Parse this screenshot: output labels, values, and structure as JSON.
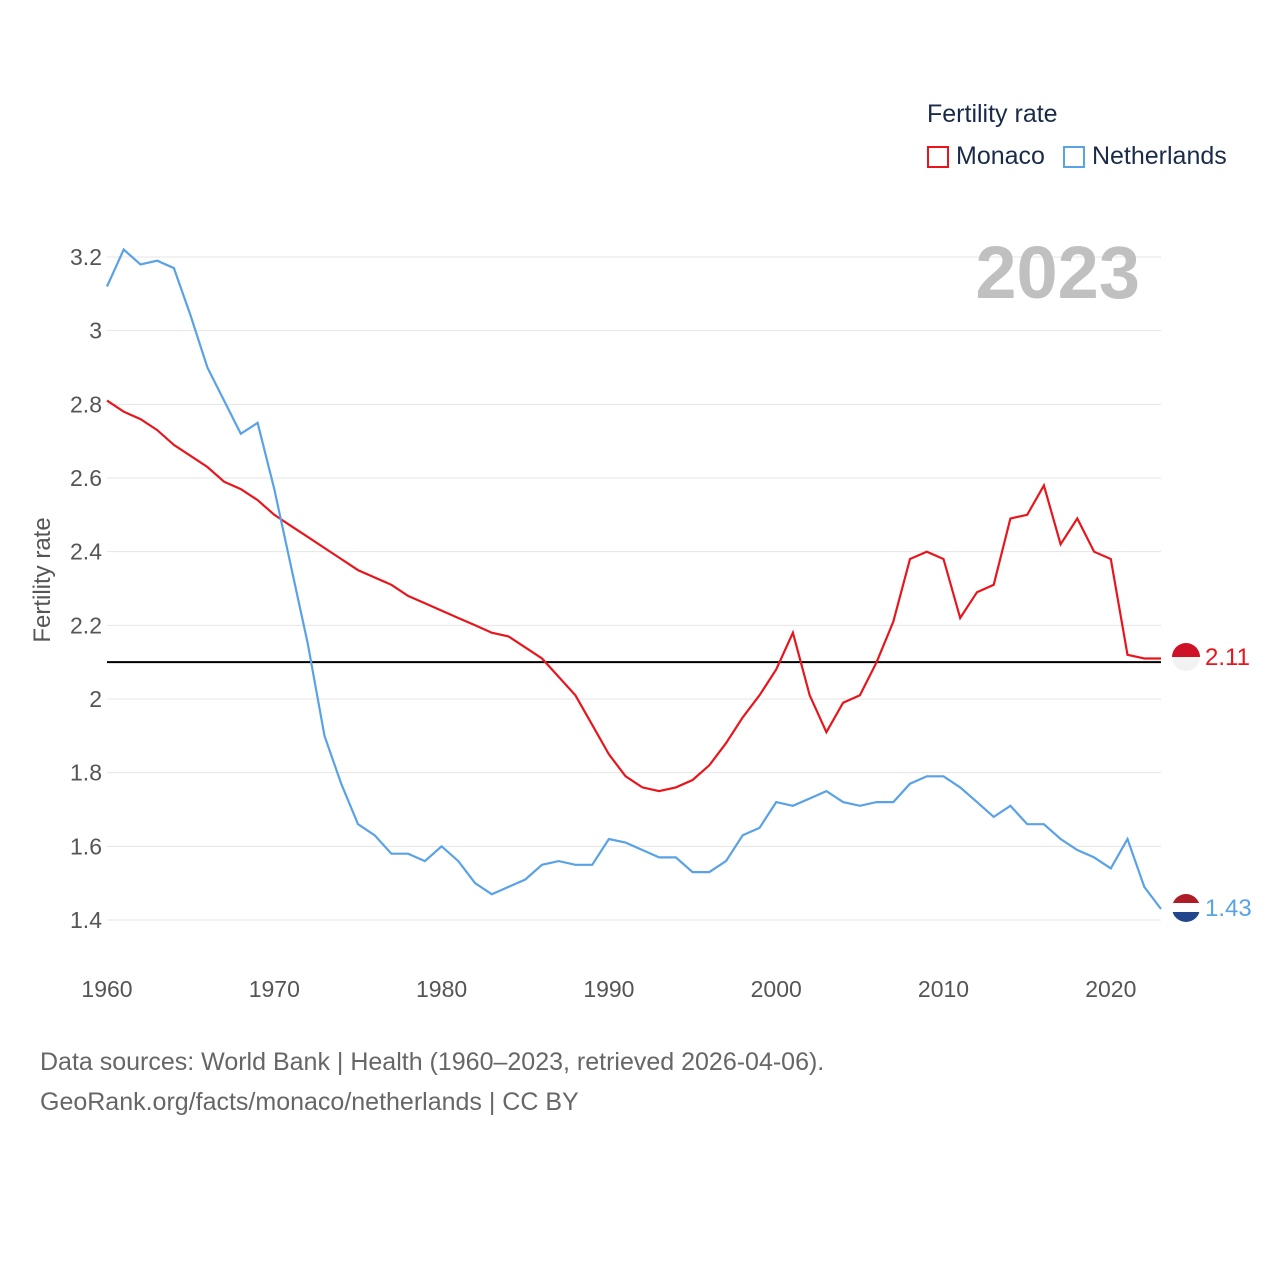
{
  "legend": {
    "title": "Fertility rate",
    "items": [
      {
        "label": "Monaco",
        "color": "#e8161c"
      },
      {
        "label": "Netherlands",
        "color": "#5aa2e6"
      }
    ]
  },
  "year_label": "2023",
  "footer": {
    "line1": "Data sources: World Bank | Health (1960–2023, retrieved 2026-04-06).",
    "line2": "GeoRank.org/facts/monaco/netherlands | CC BY"
  },
  "colors": {
    "monaco": "#e8161c",
    "netherlands": "#5aa2e6",
    "grid": "#e4e4e4",
    "reference": "#000000",
    "year": "#c0c0c0"
  },
  "chart_data": {
    "type": "line",
    "title": "",
    "xlabel": "",
    "ylabel": "Fertility rate",
    "xlim": [
      1960,
      2023
    ],
    "ylim": [
      1.3,
      3.25
    ],
    "x_ticks": [
      1960,
      1970,
      1980,
      1990,
      2000,
      2010,
      2020
    ],
    "x_tick_labels": [
      "1960",
      "1970",
      "1980",
      "1990",
      "2000",
      "2010",
      "2020"
    ],
    "y_ticks": [
      1.4,
      1.6,
      1.8,
      2.0,
      2.2,
      2.4,
      2.6,
      2.8,
      3.0,
      3.2
    ],
    "y_tick_labels": [
      "1.4",
      "1.6",
      "1.8",
      "2",
      "2.2",
      "2.4",
      "2.6",
      "2.8",
      "3",
      "3.2"
    ],
    "reference_line": 2.1,
    "grid": true,
    "x": [
      1960,
      1961,
      1962,
      1963,
      1964,
      1965,
      1966,
      1967,
      1968,
      1969,
      1970,
      1971,
      1972,
      1973,
      1974,
      1975,
      1976,
      1977,
      1978,
      1979,
      1980,
      1981,
      1982,
      1983,
      1984,
      1985,
      1986,
      1987,
      1988,
      1989,
      1990,
      1991,
      1992,
      1993,
      1994,
      1995,
      1996,
      1997,
      1998,
      1999,
      2000,
      2001,
      2002,
      2003,
      2004,
      2005,
      2006,
      2007,
      2008,
      2009,
      2010,
      2011,
      2012,
      2013,
      2014,
      2015,
      2016,
      2017,
      2018,
      2019,
      2020,
      2021,
      2022,
      2023
    ],
    "series": [
      {
        "name": "Monaco",
        "end_label": "2.11",
        "values": [
          2.81,
          2.78,
          2.76,
          2.73,
          2.69,
          2.66,
          2.63,
          2.59,
          2.57,
          2.54,
          2.5,
          2.47,
          2.44,
          2.41,
          2.38,
          2.35,
          2.33,
          2.31,
          2.28,
          2.26,
          2.24,
          2.22,
          2.2,
          2.18,
          2.17,
          2.14,
          2.11,
          2.06,
          2.01,
          1.93,
          1.85,
          1.79,
          1.76,
          1.75,
          1.76,
          1.78,
          1.82,
          1.88,
          1.95,
          2.01,
          2.08,
          2.18,
          2.01,
          1.91,
          1.99,
          2.01,
          2.1,
          2.21,
          2.38,
          2.4,
          2.38,
          2.22,
          2.29,
          2.31,
          2.49,
          2.5,
          2.58,
          2.42,
          2.49,
          2.4,
          2.38,
          2.12,
          2.11,
          2.11
        ]
      },
      {
        "name": "Netherlands",
        "end_label": "1.43",
        "values": [
          3.12,
          3.22,
          3.18,
          3.19,
          3.17,
          3.04,
          2.9,
          2.81,
          2.72,
          2.75,
          2.57,
          2.36,
          2.15,
          1.9,
          1.77,
          1.66,
          1.63,
          1.58,
          1.58,
          1.56,
          1.6,
          1.56,
          1.5,
          1.47,
          1.49,
          1.51,
          1.55,
          1.56,
          1.55,
          1.55,
          1.62,
          1.61,
          1.59,
          1.57,
          1.57,
          1.53,
          1.53,
          1.56,
          1.63,
          1.65,
          1.72,
          1.71,
          1.73,
          1.75,
          1.72,
          1.71,
          1.72,
          1.72,
          1.77,
          1.79,
          1.79,
          1.76,
          1.72,
          1.68,
          1.71,
          1.66,
          1.66,
          1.62,
          1.59,
          1.57,
          1.54,
          1.62,
          1.49,
          1.43
        ]
      }
    ]
  }
}
